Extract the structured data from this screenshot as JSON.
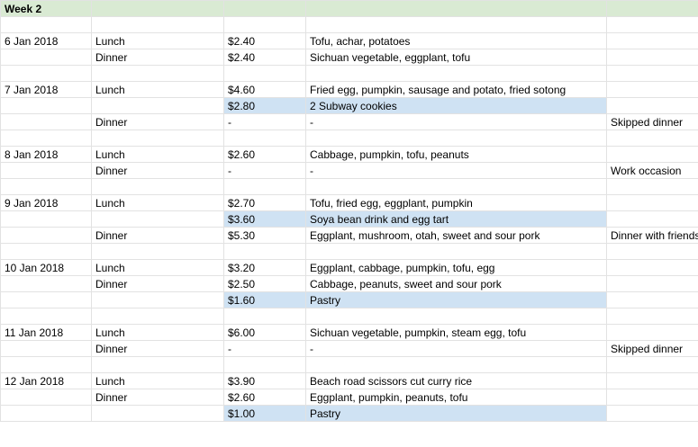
{
  "sheet": {
    "title": "Week 2",
    "rows": [
      {},
      {
        "date": "6 Jan 2018",
        "meal": "Lunch",
        "cost": "$2.40",
        "food": "Tofu, achar, potatoes"
      },
      {
        "meal": "Dinner",
        "cost": "$2.40",
        "food": "Sichuan vegetable, eggplant, tofu"
      },
      {},
      {
        "date": "7 Jan 2018",
        "meal": "Lunch",
        "cost": "$4.60",
        "food": "Fried egg, pumpkin, sausage and potato, fried sotong"
      },
      {
        "cost": "$2.80",
        "food": "2 Subway cookies",
        "highlight": true
      },
      {
        "meal": "Dinner",
        "cost": "-",
        "food": "-",
        "note": "Skipped dinner"
      },
      {},
      {
        "date": "8 Jan 2018",
        "meal": "Lunch",
        "cost": "$2.60",
        "food": "Cabbage, pumpkin, tofu, peanuts"
      },
      {
        "meal": "Dinner",
        "cost": "-",
        "food": "-",
        "note": "Work occasion"
      },
      {},
      {
        "date": "9 Jan 2018",
        "meal": "Lunch",
        "cost": "$2.70",
        "food": "Tofu, fried egg, eggplant, pumpkin"
      },
      {
        "cost": "$3.60",
        "food": "Soya bean drink and egg tart",
        "highlight": true
      },
      {
        "meal": "Dinner",
        "cost": "$5.30",
        "food": "Eggplant, mushroom, otah, sweet and sour pork",
        "note": "Dinner with friends"
      },
      {},
      {
        "date": "10 Jan 2018",
        "meal": "Lunch",
        "cost": "$3.20",
        "food": "Eggplant, cabbage, pumpkin, tofu, egg"
      },
      {
        "meal": "Dinner",
        "cost": "$2.50",
        "food": "Cabbage, peanuts, sweet and sour pork"
      },
      {
        "cost": "$1.60",
        "food": "Pastry",
        "highlight": true
      },
      {},
      {
        "date": "11 Jan 2018",
        "meal": "Lunch",
        "cost": "$6.00",
        "food": "Sichuan vegetable, pumpkin, steam egg, tofu"
      },
      {
        "meal": "Dinner",
        "cost": "-",
        "food": "-",
        "note": "Skipped dinner"
      },
      {},
      {
        "date": "12 Jan 2018",
        "meal": "Lunch",
        "cost": "$3.90",
        "food": "Beach road scissors cut curry rice"
      },
      {
        "meal": "Dinner",
        "cost": "$2.60",
        "food": "Eggplant, pumpkin, peanuts, tofu"
      },
      {
        "cost": "$1.00",
        "food": "Pastry",
        "highlight": true
      }
    ]
  }
}
